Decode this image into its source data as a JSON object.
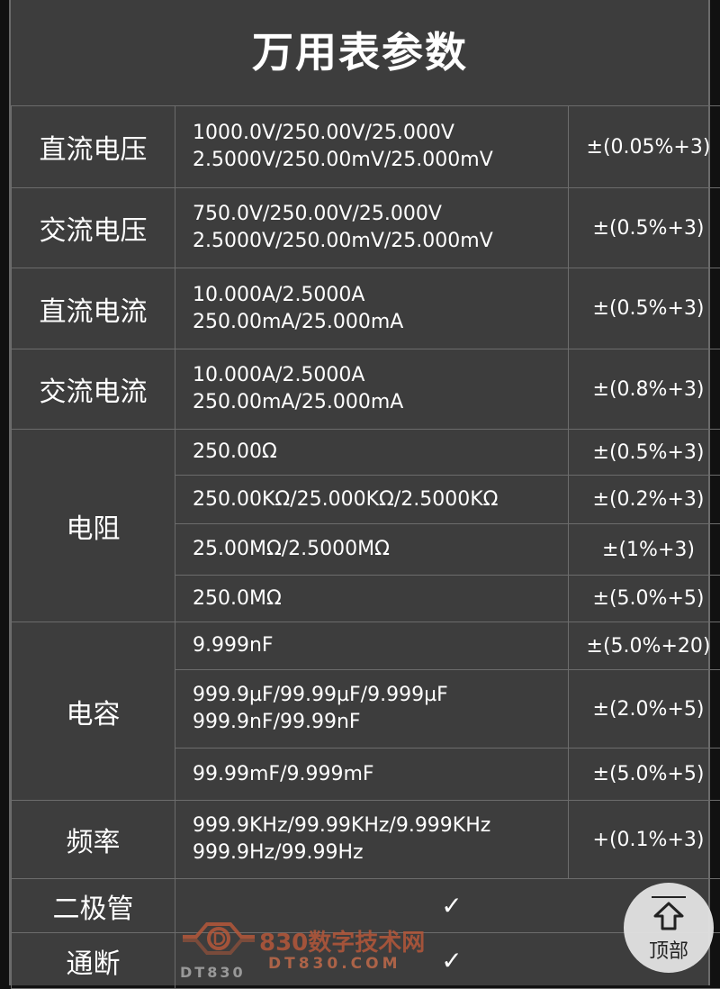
{
  "title": "万用表参数",
  "rows": [
    {
      "label": "直流电压",
      "ranges": [
        "1000.0V/250.00V/25.000V",
        "2.5000V/250.00mV/25.000mV"
      ],
      "accuracy": "±(0.05%+3)"
    },
    {
      "label": "交流电压",
      "ranges": [
        "750.0V/250.00V/25.000V",
        "2.5000V/250.00mV/25.000mV"
      ],
      "accuracy": "±(0.5%+3)"
    },
    {
      "label": "直流电流",
      "ranges": [
        "10.000A/2.5000A",
        "250.00mA/25.000mA"
      ],
      "accuracy": "±(0.5%+3)"
    },
    {
      "label": "交流电流",
      "ranges": [
        "10.000A/2.5000A",
        "250.00mA/25.000mA"
      ],
      "accuracy": "±(0.8%+3)"
    }
  ],
  "resistance": {
    "label": "电阻",
    "sub": [
      {
        "range": "250.00Ω",
        "accuracy": "±(0.5%+3)"
      },
      {
        "range": "250.00KΩ/25.000KΩ/2.5000KΩ",
        "accuracy": "±(0.2%+3)"
      },
      {
        "range": "25.00MΩ/2.5000MΩ",
        "accuracy": "±(1%+3)"
      },
      {
        "range": "250.0MΩ",
        "accuracy": "±(5.0%+5)"
      }
    ]
  },
  "capacitance": {
    "label": "电容",
    "sub": [
      {
        "ranges": [
          "9.999nF"
        ],
        "accuracy": "±(5.0%+20)"
      },
      {
        "ranges": [
          "999.9µF/99.99µF/9.999µF",
          "999.9nF/99.99nF"
        ],
        "accuracy": "±(2.0%+5)"
      },
      {
        "ranges": [
          "99.99mF/9.999mF"
        ],
        "accuracy": "±(5.0%+5)"
      }
    ]
  },
  "frequency": {
    "label": "频率",
    "ranges": [
      "999.9KHz/99.99KHz/9.999KHz",
      "999.9Hz/99.99Hz"
    ],
    "accuracy": "+(0.1%+3)"
  },
  "diode": {
    "label": "二极管",
    "value": "✓"
  },
  "continuity": {
    "label": "通断",
    "value": "✓"
  },
  "top_button": {
    "label": "顶部",
    "icon": "arrow-up-to-top-icon"
  },
  "watermark": {
    "cn": "830数字技术网",
    "en": "DT830.COM",
    "logo": "DT830",
    "color": "#b5583a"
  }
}
